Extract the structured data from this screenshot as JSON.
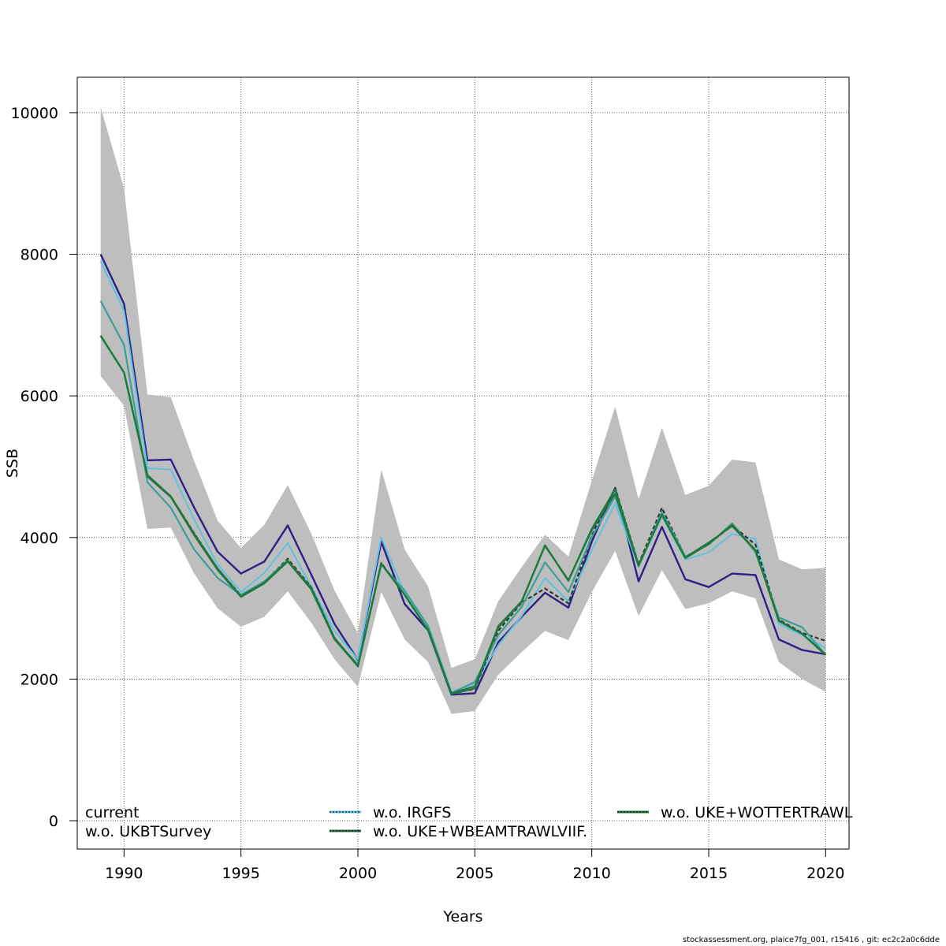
{
  "chart_data": {
    "type": "line",
    "xlabel": "Years",
    "ylabel": "SSB",
    "xlim": [
      1988,
      2021
    ],
    "ylim": [
      -400,
      10500
    ],
    "x_ticks": [
      1990,
      1995,
      2000,
      2005,
      2010,
      2015,
      2020
    ],
    "y_ticks": [
      0,
      2000,
      4000,
      6000,
      8000,
      10000
    ],
    "grid": true,
    "legend_position": "bottom",
    "x": [
      1989,
      1990,
      1991,
      1992,
      1993,
      1994,
      1995,
      1996,
      1997,
      1998,
      1999,
      2000,
      2001,
      2002,
      2003,
      2004,
      2005,
      2006,
      2007,
      2008,
      2009,
      2010,
      2011,
      2012,
      2013,
      2014,
      2015,
      2016,
      2017,
      2018,
      2019,
      2020
    ],
    "confidence_band": {
      "color": "#bebebe",
      "upper": [
        10080,
        8930,
        6020,
        5980,
        5080,
        4240,
        3850,
        4180,
        4740,
        4060,
        3250,
        2650,
        4960,
        3830,
        3310,
        2160,
        2280,
        3100,
        3580,
        4040,
        3730,
        4800,
        5850,
        4540,
        5550,
        4600,
        4730,
        5100,
        5060,
        3690,
        3550,
        3570
      ],
      "lower": [
        6280,
        5860,
        4120,
        4140,
        3490,
        3000,
        2740,
        2880,
        3240,
        2800,
        2280,
        1890,
        3230,
        2560,
        2240,
        1510,
        1550,
        2060,
        2380,
        2680,
        2550,
        3230,
        3810,
        2890,
        3540,
        2990,
        3070,
        3240,
        3140,
        2240,
        2000,
        1820
      ]
    },
    "series": [
      {
        "name": "current",
        "color": "#2e1f86",
        "width": 2.4,
        "dash": "",
        "values": [
          8000,
          7300,
          5090,
          5100,
          4420,
          3800,
          3490,
          3660,
          4170,
          3480,
          2780,
          2270,
          3940,
          3060,
          2690,
          1780,
          1800,
          2520,
          2880,
          3220,
          3010,
          3940,
          4700,
          3380,
          4150,
          3410,
          3300,
          3490,
          3470,
          2560,
          2410,
          2350
        ]
      },
      {
        "name": "w.o. IRGFS",
        "color": "#5ec2e0",
        "width": 2,
        "dash": "",
        "values": [
          7900,
          7200,
          4980,
          4960,
          4250,
          3620,
          3230,
          3500,
          3920,
          3310,
          2680,
          2280,
          4000,
          3210,
          2760,
          1820,
          1930,
          2480,
          2890,
          3430,
          3100,
          3820,
          4480,
          3590,
          4300,
          3690,
          3790,
          4050,
          3980,
          2780,
          2620,
          2440
        ]
      },
      {
        "name": "w.o. UKE+WOTTERTRAWL",
        "color": "#333333",
        "width": 2.2,
        "dash": "5,3",
        "values": [
          6850,
          6330,
          4880,
          4580,
          4060,
          3560,
          3180,
          3370,
          3700,
          3300,
          2580,
          2190,
          3640,
          3190,
          2690,
          1800,
          1860,
          2680,
          3080,
          3280,
          3070,
          4030,
          4700,
          3620,
          4420,
          3720,
          3910,
          4170,
          3900,
          2840,
          2650,
          2540
        ]
      },
      {
        "name": "w.o. UKBTSurvey",
        "color": "#3b9f95",
        "width": 2.2,
        "dash": "",
        "values": [
          7340,
          6720,
          4780,
          4420,
          3830,
          3430,
          3190,
          3380,
          3680,
          3270,
          2560,
          2210,
          3620,
          3250,
          2750,
          1800,
          1960,
          2620,
          3020,
          3650,
          3230,
          4010,
          4580,
          3590,
          4360,
          3730,
          3900,
          4200,
          3790,
          2870,
          2730,
          2340
        ]
      },
      {
        "name": "w.o. UKE+WBEAMTRAWLVIIF.",
        "color": "#2f6a4a",
        "width": 2,
        "dash": "",
        "values": [
          6850,
          6330,
          4860,
          4570,
          4030,
          3540,
          3160,
          3350,
          3660,
          3270,
          2560,
          2180,
          3630,
          3190,
          2700,
          1800,
          1900,
          2750,
          3100,
          3880,
          3400,
          4100,
          4620,
          3610,
          4320,
          3720,
          3930,
          4160,
          3820,
          2830,
          2640,
          2350
        ]
      },
      {
        "name": "w.o. UKE+WOTTERTRAWL",
        "color": "#1c7a3c",
        "width": 2.4,
        "dash": "",
        "values": [
          6850,
          6330,
          4880,
          4580,
          4050,
          3560,
          3170,
          3360,
          3670,
          3290,
          2580,
          2180,
          3630,
          3190,
          2690,
          1790,
          1870,
          2730,
          3090,
          3890,
          3390,
          4120,
          4680,
          3610,
          4320,
          3710,
          3910,
          4180,
          3820,
          2820,
          2640,
          2340
        ]
      }
    ],
    "legend": [
      {
        "label": "current",
        "color": "#2e1f86",
        "dash": ""
      },
      {
        "label": "w.o. UKBTSurvey",
        "color": "#3b9f95",
        "dash": ""
      },
      {
        "label": "w.o. IRGFS",
        "color": "#5ec2e0",
        "dash": "3,2"
      },
      {
        "label": "w.o. UKE+WBEAMTRAWLVIIF.",
        "color": "#2f6a4a",
        "dash": "3,2"
      },
      {
        "label": "w.o. UKE+WOTTERTRAWL",
        "color": "#1c7a3c",
        "dash": "3,2"
      }
    ]
  },
  "footer": {
    "text": "stockassessment.org, plaice7fg_001, r15416 , git: ec2c2a0c6dde"
  }
}
